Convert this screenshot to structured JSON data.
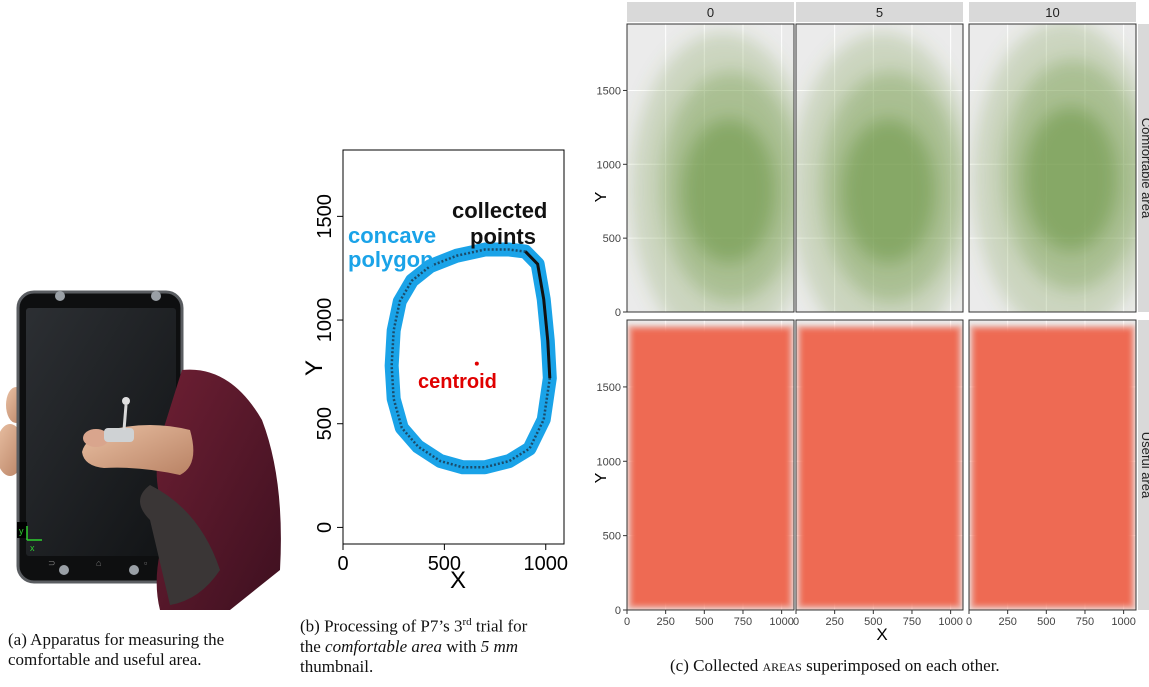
{
  "figure_a": {
    "caption": "(a) Apparatus for measuring the comfortable and useful area.",
    "caption_line1": "(a) Apparatus for measuring the",
    "caption_line2": "comfortable and useful area.",
    "axis_x_glyph": "x",
    "axis_y_glyph": "y"
  },
  "figure_b": {
    "caption_line1_prefix": "(b) Processing of P7’s 3",
    "caption_sup": "rd",
    "caption_line1_suffix": " trial for",
    "caption_line2_prefix": "the ",
    "caption_line2_italic": "comfortable area",
    "caption_line2_mid": " with ",
    "caption_line2_italic2": "5 mm",
    "caption_line3": "thumbnail.",
    "annotations": {
      "concave": "concave",
      "polygon": "polygon",
      "collected": "collected",
      "points": "points",
      "centroid": "centroid"
    },
    "colors": {
      "polygon": "#1aa3e8",
      "points": "#111111",
      "centroid": "#e00000"
    },
    "chart_data": {
      "type": "scatter",
      "xlabel": "X",
      "ylabel": "Y",
      "xlim": [
        0,
        1090
      ],
      "ylim": [
        -80,
        1820
      ],
      "x_ticks": [
        "0",
        "500",
        "1000"
      ],
      "y_ticks": [
        "0",
        "500",
        "1000",
        "1500"
      ],
      "centroid": [
        660,
        790
      ],
      "polygon": [
        [
          900,
          1330
        ],
        [
          960,
          1270
        ],
        [
          990,
          1100
        ],
        [
          1010,
          900
        ],
        [
          1020,
          720
        ],
        [
          990,
          520
        ],
        [
          920,
          380
        ],
        [
          820,
          320
        ],
        [
          700,
          290
        ],
        [
          590,
          290
        ],
        [
          480,
          320
        ],
        [
          370,
          390
        ],
        [
          290,
          480
        ],
        [
          250,
          620
        ],
        [
          240,
          780
        ],
        [
          250,
          950
        ],
        [
          280,
          1090
        ],
        [
          340,
          1190
        ],
        [
          430,
          1260
        ],
        [
          560,
          1310
        ],
        [
          700,
          1340
        ],
        [
          820,
          1340
        ]
      ]
    }
  },
  "figure_c": {
    "caption_prefix": "(c) Collected ",
    "caption_sc": "areas",
    "caption_suffix": " superimposed on each other.",
    "colors": {
      "comfortable": "#6a9440",
      "useful": "#ee6a52",
      "strip": "#d9d9d9",
      "panel_bg": "#ebebeb"
    },
    "chart_data": {
      "type": "area",
      "facets_columns": [
        "0",
        "5",
        "10"
      ],
      "facets_rows": [
        "Comfortable area",
        "Useful area"
      ],
      "xlabel": "X",
      "ylabel": "Y",
      "xlim": [
        0,
        1080
      ],
      "ylim": [
        0,
        1950
      ],
      "x_ticks": [
        "0",
        "250",
        "500",
        "750",
        "1000"
      ],
      "y_ticks": [
        "0",
        "500",
        "1000",
        "1500"
      ],
      "useful_area_extent": {
        "x": [
          0,
          1080
        ],
        "y": [
          0,
          1920
        ]
      },
      "comfortable_area_center": [
        {
          "col": "0",
          "x": 620,
          "y": 820
        },
        {
          "col": "5",
          "x": 560,
          "y": 820
        },
        {
          "col": "10",
          "x": 620,
          "y": 900
        }
      ]
    }
  }
}
